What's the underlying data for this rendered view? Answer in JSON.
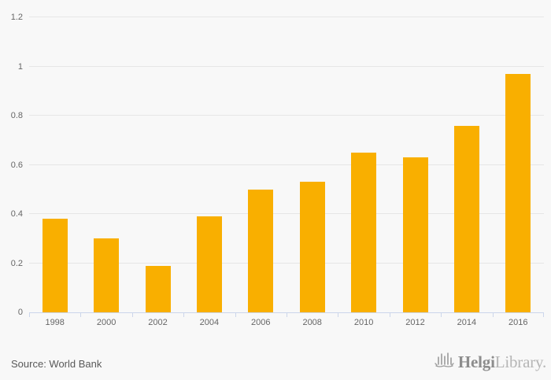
{
  "chart_data": {
    "type": "bar",
    "title": "",
    "xlabel": "",
    "ylabel": "",
    "categories": [
      "1998",
      "2000",
      "2002",
      "2004",
      "2006",
      "2008",
      "2010",
      "2012",
      "2014",
      "2016"
    ],
    "values": [
      0.38,
      0.3,
      0.19,
      0.39,
      0.5,
      0.53,
      0.65,
      0.63,
      0.76,
      0.97
    ],
    "ylim": [
      0,
      1.2
    ],
    "yticks": [
      0,
      0.2,
      0.4,
      0.6,
      0.8,
      1,
      1.2
    ],
    "ytick_labels": [
      "0",
      "0.2",
      "0.4",
      "0.6",
      "0.8",
      "1",
      "1.2"
    ],
    "grid": true,
    "legend_position": "none",
    "bar_color": "#f9af00",
    "gridline_color": "#e6e6e6",
    "axis_line_color": "#ccd6eb",
    "label_color": "#666666",
    "background_color": "#f8f8f8"
  },
  "footer": {
    "source": "Source: World Bank",
    "logo": {
      "icon": "skyline-icon",
      "brand_bold": "Helgi",
      "brand_light": "Library."
    }
  }
}
